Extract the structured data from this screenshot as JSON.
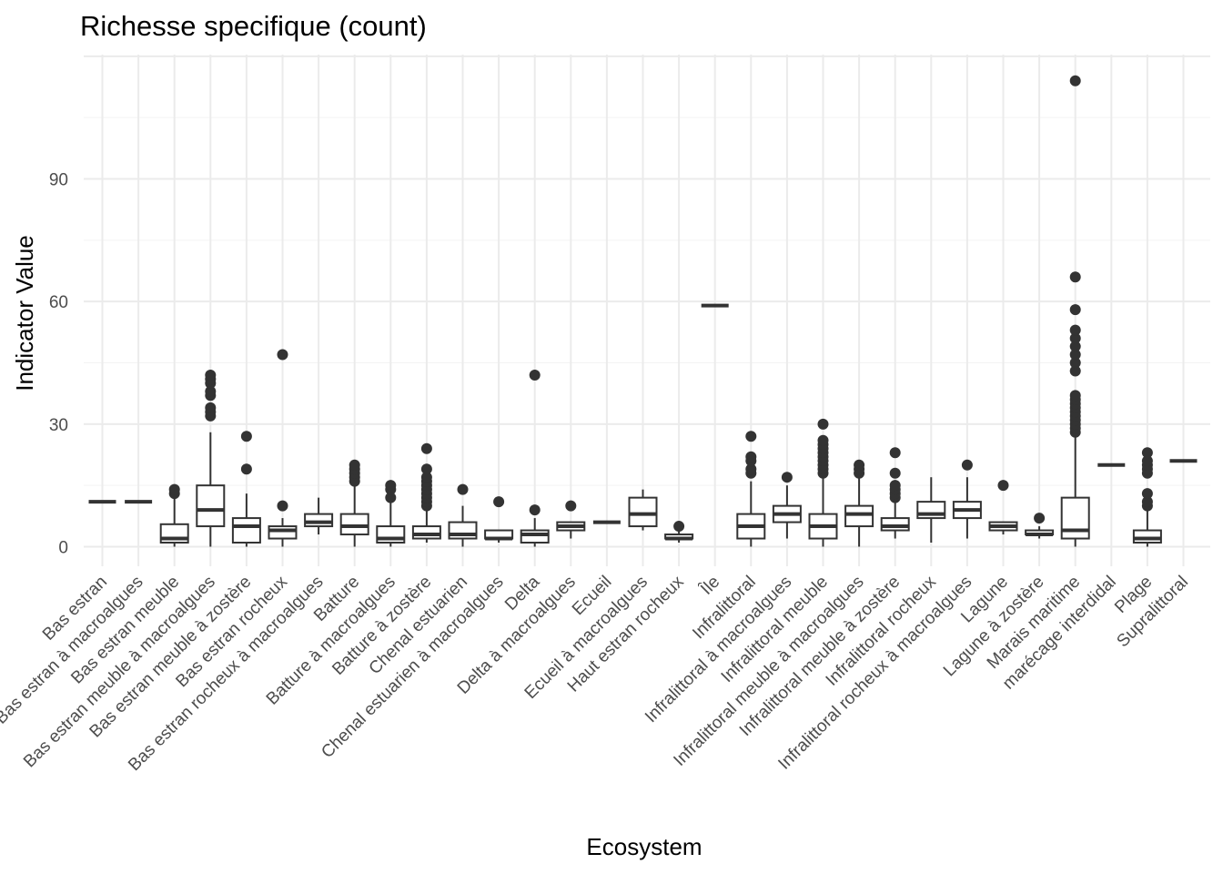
{
  "chart_data": {
    "type": "boxplot",
    "title": "Richesse specifique (count)",
    "xlabel": "Ecosystem",
    "ylabel": "Indicator Value",
    "ylim": [
      -5,
      120
    ],
    "yticks": [
      0,
      30,
      60,
      90
    ],
    "grid": true,
    "legend": "none",
    "categories": [
      "Bas estran",
      "Bas estran à macroalgues",
      "Bas estran meuble",
      "Bas estran meuble à macroalgues",
      "Bas estran meuble à zostère",
      "Bas estran rocheux",
      "Bas estran rocheux à macroalgues",
      "Batture",
      "Batture à macroalgues",
      "Batture à zostère",
      "Chenal estuarien",
      "Chenal estuarien à macroalgues",
      "Delta",
      "Delta à macroalgues",
      "Ecueil",
      "Ecueil à macroalgues",
      "Haut estran rocheux",
      "Île",
      "Infralittoral",
      "Infralittoral à macroalgues",
      "Infralittoral meuble",
      "Infralittoral meuble à macroalgues",
      "Infralittoral meuble à zostère",
      "Infralittoral rocheux",
      "Infralittoral rocheux à macroalgues",
      "Lagune",
      "Lagune à zostère",
      "Marais maritime",
      "marécage interdidal",
      "Plage",
      "Supralittoral"
    ],
    "boxes": [
      {
        "min": 11,
        "q1": 11,
        "median": 11,
        "q3": 11,
        "max": 11,
        "outliers": []
      },
      {
        "min": 11,
        "q1": 11,
        "median": 11,
        "q3": 11,
        "max": 11,
        "outliers": []
      },
      {
        "min": 0,
        "q1": 1,
        "median": 2,
        "q3": 5.5,
        "max": 12,
        "outliers": [
          13,
          14
        ]
      },
      {
        "min": 0,
        "q1": 5,
        "median": 9,
        "q3": 15,
        "max": 28,
        "outliers": [
          32,
          33,
          34,
          37,
          38,
          40,
          41,
          42
        ]
      },
      {
        "min": 0,
        "q1": 1,
        "median": 5,
        "q3": 7,
        "max": 13,
        "outliers": [
          19,
          27
        ]
      },
      {
        "min": 0,
        "q1": 2,
        "median": 4,
        "q3": 5,
        "max": 7,
        "outliers": [
          10,
          47
        ]
      },
      {
        "min": 3,
        "q1": 5,
        "median": 6,
        "q3": 8,
        "max": 12,
        "outliers": []
      },
      {
        "min": 0,
        "q1": 3,
        "median": 5,
        "q3": 8,
        "max": 15,
        "outliers": [
          16,
          17,
          18,
          19,
          20
        ]
      },
      {
        "min": 0,
        "q1": 1,
        "median": 2,
        "q3": 5,
        "max": 11,
        "outliers": [
          12,
          14,
          15
        ]
      },
      {
        "min": 1,
        "q1": 2,
        "median": 3,
        "q3": 5,
        "max": 9,
        "outliers": [
          10,
          11,
          12,
          13,
          14,
          15,
          16,
          17,
          19,
          24
        ]
      },
      {
        "min": 0,
        "q1": 2,
        "median": 3,
        "q3": 6,
        "max": 10,
        "outliers": [
          14
        ]
      },
      {
        "min": 1,
        "q1": 2,
        "median": 2,
        "q3": 4,
        "max": 4,
        "outliers": [
          11
        ]
      },
      {
        "min": 0,
        "q1": 1,
        "median": 3,
        "q3": 4,
        "max": 7,
        "outliers": [
          9,
          42
        ]
      },
      {
        "min": 2,
        "q1": 4,
        "median": 5,
        "q3": 6,
        "max": 6,
        "outliers": [
          10
        ]
      },
      {
        "min": 6,
        "q1": 6,
        "median": 6,
        "q3": 6,
        "max": 6,
        "outliers": []
      },
      {
        "min": 4,
        "q1": 5,
        "median": 8,
        "q3": 12,
        "max": 14,
        "outliers": []
      },
      {
        "min": 1,
        "q1": 2,
        "median": 2,
        "q3": 3,
        "max": 4,
        "outliers": [
          5
        ]
      },
      {
        "min": 59,
        "q1": 59,
        "median": 59,
        "q3": 59,
        "max": 59,
        "outliers": []
      },
      {
        "min": 0,
        "q1": 2,
        "median": 5,
        "q3": 8,
        "max": 16,
        "outliers": [
          18,
          19,
          21,
          22,
          27
        ]
      },
      {
        "min": 2,
        "q1": 6,
        "median": 8,
        "q3": 10,
        "max": 15,
        "outliers": [
          17
        ]
      },
      {
        "min": 0,
        "q1": 2,
        "median": 5,
        "q3": 8,
        "max": 17,
        "outliers": [
          18,
          19,
          20,
          21,
          22,
          23,
          24,
          25,
          26,
          30
        ]
      },
      {
        "min": 0,
        "q1": 5,
        "median": 8,
        "q3": 10,
        "max": 17,
        "outliers": [
          18,
          19,
          20
        ]
      },
      {
        "min": 2,
        "q1": 4,
        "median": 5,
        "q3": 7,
        "max": 11,
        "outliers": [
          12,
          13,
          14,
          15,
          18,
          23
        ]
      },
      {
        "min": 1,
        "q1": 7,
        "median": 8,
        "q3": 11,
        "max": 17,
        "outliers": []
      },
      {
        "min": 2,
        "q1": 7,
        "median": 9,
        "q3": 11,
        "max": 17,
        "outliers": [
          20
        ]
      },
      {
        "min": 3,
        "q1": 4,
        "median": 5,
        "q3": 6,
        "max": 6,
        "outliers": [
          15
        ]
      },
      {
        "min": 2,
        "q1": 3,
        "median": 3,
        "q3": 4,
        "max": 5,
        "outliers": [
          7
        ]
      },
      {
        "min": 0,
        "q1": 2,
        "median": 4,
        "q3": 12,
        "max": 27,
        "outliers": [
          28,
          29,
          30,
          31,
          32,
          33,
          34,
          35,
          36,
          37,
          43,
          45,
          47,
          49,
          51,
          53,
          58,
          66,
          114
        ]
      },
      {
        "min": 20,
        "q1": 20,
        "median": 20,
        "q3": 20,
        "max": 20,
        "outliers": []
      },
      {
        "min": 0,
        "q1": 1,
        "median": 2,
        "q3": 4,
        "max": 9,
        "outliers": [
          10,
          11,
          13,
          18,
          19,
          20,
          21,
          23
        ]
      },
      {
        "min": 21,
        "q1": 21,
        "median": 21,
        "q3": 21,
        "max": 21,
        "outliers": []
      }
    ]
  }
}
